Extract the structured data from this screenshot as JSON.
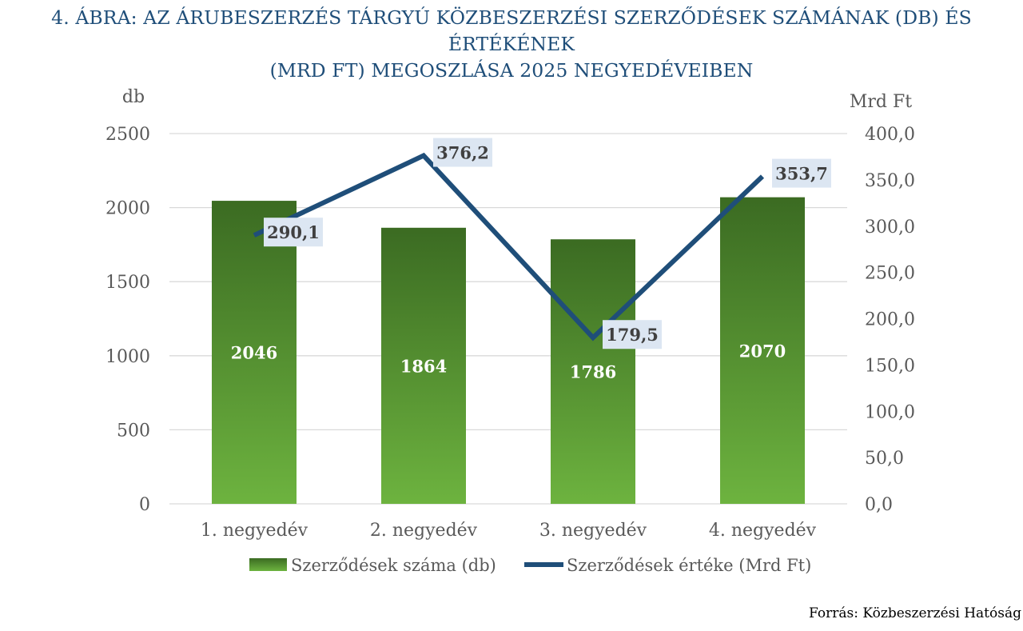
{
  "title": {
    "line1": "4. ÁBRA: AZ ÁRUBESZERZÉS TÁRGYÚ KÖZBESZERZÉSI SZERZŐDÉSEK SZÁMÁNAK (DB) ÉS ÉRTÉKÉNEK",
    "line2": "(MRD FT) MEGOSZLÁSA 2025 NEGYEDÉVEIBEN"
  },
  "source": "Forrás: Közbeszerzési Hatóság",
  "colors": {
    "bar_top": "#3b6b22",
    "bar_bottom": "#6db33f",
    "line": "#1f4e79",
    "label_bg": "#dce6f2",
    "grid": "#d9d9d9"
  },
  "chart_data": {
    "type": "bar",
    "categories": [
      "1. negyedév",
      "2. negyedév",
      "3. negyedév",
      "4. negyedév"
    ],
    "series": [
      {
        "name": "Szerződések száma (db)",
        "type": "bar",
        "axis": "left",
        "values": [
          2046,
          1864,
          1786,
          2070
        ],
        "labels": [
          "2046",
          "1864",
          "1786",
          "2070"
        ]
      },
      {
        "name": "Szerződések értéke (Mrd Ft)",
        "type": "line",
        "axis": "right",
        "values": [
          290.1,
          376.2,
          179.5,
          353.7
        ],
        "labels": [
          "290,1",
          "376,2",
          "179,5",
          "353,7"
        ]
      }
    ],
    "left_axis": {
      "label": "db",
      "range": [
        0,
        2500
      ],
      "ticks": [
        "0",
        "500",
        "1000",
        "1500",
        "2000",
        "2500"
      ]
    },
    "right_axis": {
      "label": "Mrd Ft",
      "range": [
        0,
        400
      ],
      "ticks": [
        "0,0",
        "50,0",
        "100,0",
        "150,0",
        "200,0",
        "250,0",
        "300,0",
        "350,0",
        "400,0"
      ]
    },
    "grid": true,
    "legend_position": "bottom"
  }
}
